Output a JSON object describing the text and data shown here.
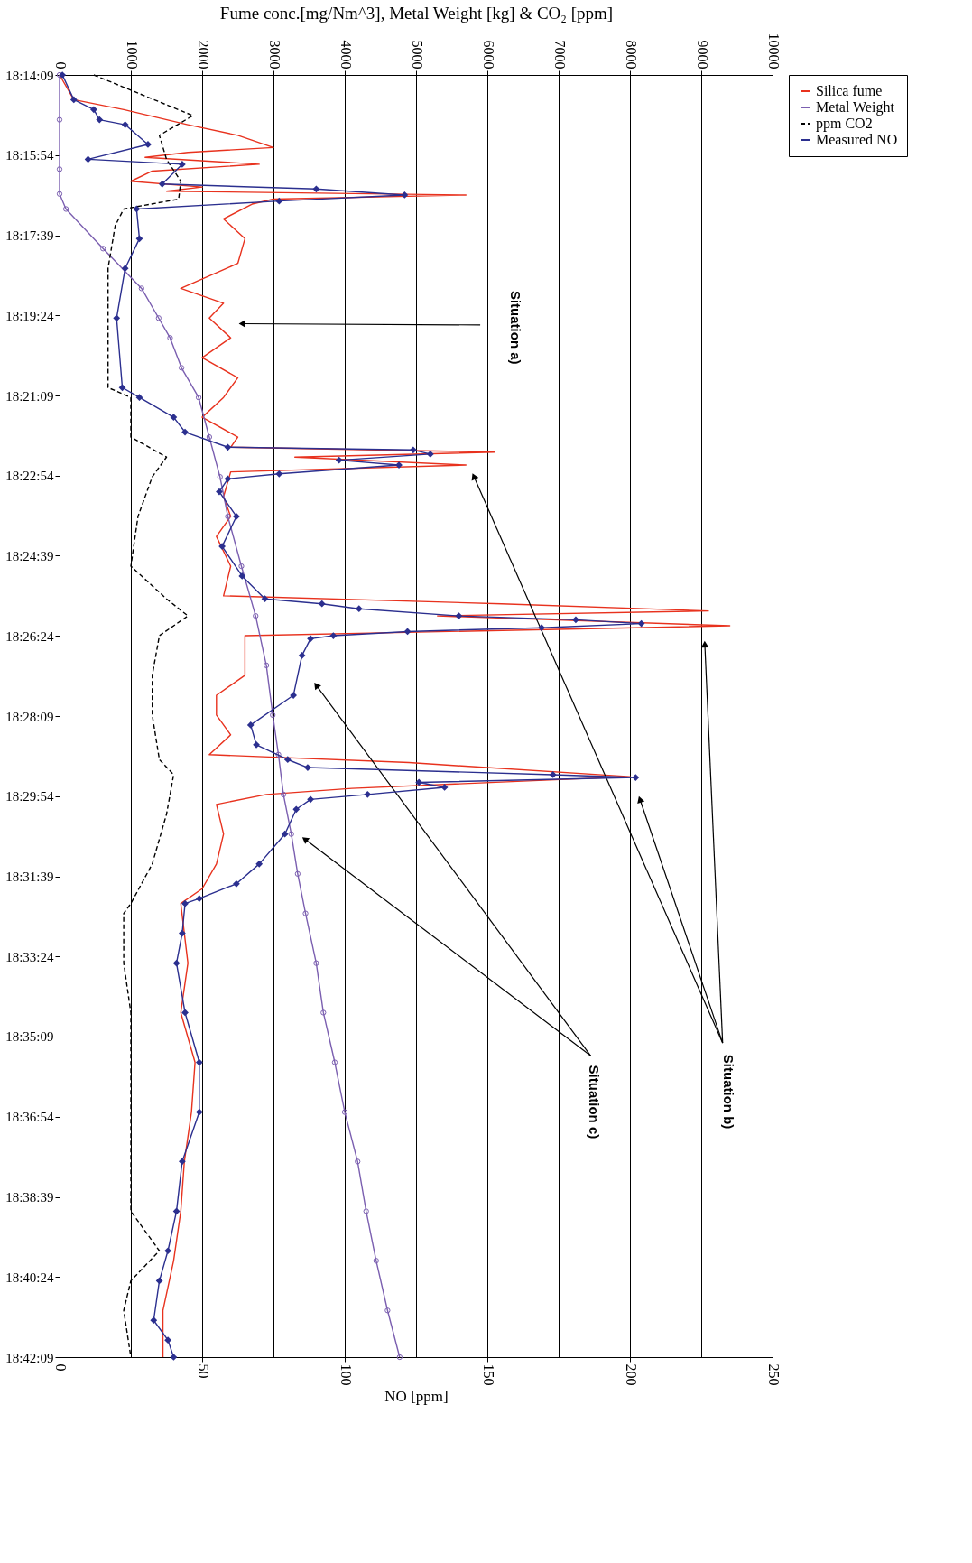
{
  "chart_data": {
    "type": "line",
    "orientation": "horizontal",
    "x2label": "Fume conc.[mg/Nm^3], Metal Weight [kg] & CO₂ [ppm]",
    "xlabel": "NO [ppm]",
    "ylim": [
      18.7025,
      18.2358
    ],
    "yticks": [
      {
        "value": 18.2358,
        "label": "18:14:09"
      },
      {
        "value": 18.265,
        "label": "18:15:54"
      },
      {
        "value": 18.2942,
        "label": "18:17:39"
      },
      {
        "value": 18.3233,
        "label": "18:19:24"
      },
      {
        "value": 18.3525,
        "label": "18:21:09"
      },
      {
        "value": 18.3817,
        "label": "18:22:54"
      },
      {
        "value": 18.4108,
        "label": "18:24:39"
      },
      {
        "value": 18.44,
        "label": "18:26:24"
      },
      {
        "value": 18.4692,
        "label": "18:28:09"
      },
      {
        "value": 18.4983,
        "label": "18:29:54"
      },
      {
        "value": 18.5275,
        "label": "18:31:39"
      },
      {
        "value": 18.5567,
        "label": "18:33:24"
      },
      {
        "value": 18.5858,
        "label": "18:35:09"
      },
      {
        "value": 18.615,
        "label": "18:36:54"
      },
      {
        "value": 18.6442,
        "label": "18:38:39"
      },
      {
        "value": 18.6733,
        "label": "18:40:24"
      },
      {
        "value": 18.7025,
        "label": "18:42:09"
      }
    ],
    "x2lim": [
      0,
      10000
    ],
    "x2ticks": [
      0,
      1000,
      2000,
      3000,
      4000,
      5000,
      6000,
      7000,
      8000,
      9000,
      10000
    ],
    "xlim": [
      0,
      250
    ],
    "xticks": [
      0,
      50,
      100,
      150,
      200,
      250
    ],
    "grid": "x2",
    "legend": "right",
    "series": [
      {
        "name": "Silica fume",
        "color": "#e8321e",
        "marker": "none",
        "line_style": "solid",
        "axis": "x2",
        "x": [
          18.2358,
          18.2448,
          18.2484,
          18.2539,
          18.2578,
          18.2622,
          18.264,
          18.2658,
          18.2683,
          18.2708,
          18.2745,
          18.2766,
          18.2781,
          18.2795,
          18.281,
          18.2828,
          18.2882,
          18.2954,
          18.3044,
          18.3135,
          18.3189,
          18.3243,
          18.3315,
          18.3387,
          18.346,
          18.3532,
          18.3604,
          18.3676,
          18.3713,
          18.3731,
          18.3749,
          18.3778,
          18.3803,
          18.3893,
          18.3965,
          18.4038,
          18.4146,
          18.4254,
          18.4283,
          18.4309,
          18.4327,
          18.4363,
          18.4399,
          18.4543,
          18.4616,
          18.4688,
          18.476,
          18.4832,
          18.4861,
          18.4912,
          18.4955,
          18.4977,
          18.5013,
          18.5121,
          18.523,
          18.532,
          18.5374,
          18.5591,
          18.5771,
          18.5952,
          18.6133,
          18.6313,
          18.6494,
          18.6674,
          18.6855,
          18.7025
        ],
        "values": [
          0,
          200,
          900,
          1800,
          2500,
          3000,
          1800,
          1200,
          2800,
          1300,
          1000,
          2000,
          1500,
          5700,
          3000,
          2700,
          2300,
          2600,
          2500,
          1700,
          2300,
          2100,
          2400,
          2000,
          2500,
          2300,
          2000,
          2500,
          2400,
          6100,
          3300,
          5700,
          2400,
          2300,
          2400,
          2200,
          2400,
          2300,
          6200,
          9100,
          5300,
          9400,
          2600,
          2600,
          2200,
          2200,
          2400,
          2100,
          4900,
          8000,
          4100,
          2900,
          2200,
          2300,
          2200,
          2000,
          1700,
          1800,
          1700,
          1900,
          1850,
          1750,
          1700,
          1600,
          1450,
          1450
        ]
      },
      {
        "name": "Metal Weight",
        "color": "#7b5fb0",
        "marker": "circle",
        "line_style": "solid",
        "axis": "x2",
        "x": [
          18.2358,
          18.2521,
          18.2701,
          18.2791,
          18.2846,
          18.299,
          18.3135,
          18.3243,
          18.3315,
          18.3424,
          18.3532,
          18.3676,
          18.3821,
          18.3965,
          18.4146,
          18.4327,
          18.4507,
          18.4688,
          18.4832,
          18.4977,
          18.5121,
          18.5266,
          18.541,
          18.5591,
          18.5771,
          18.5952,
          18.6133,
          18.6313,
          18.6494,
          18.6674,
          18.6855,
          18.7025
        ],
        "values": [
          0,
          0,
          0,
          0,
          90,
          610,
          1150,
          1390,
          1550,
          1710,
          1950,
          2100,
          2250,
          2360,
          2550,
          2750,
          2900,
          2990,
          3070,
          3140,
          3250,
          3340,
          3450,
          3600,
          3700,
          3860,
          4000,
          4180,
          4300,
          4440,
          4600,
          4770
        ]
      },
      {
        "name": "ppm CO2",
        "color": "#000000",
        "marker": "none",
        "line_style": "dashed",
        "axis": "x2",
        "x": [
          18.2358,
          18.2506,
          18.2578,
          18.2665,
          18.2745,
          18.281,
          18.2846,
          18.2907,
          18.3062,
          18.3243,
          18.3496,
          18.3532,
          18.3676,
          18.3749,
          18.3821,
          18.3965,
          18.4146,
          18.4265,
          18.4327,
          18.4399,
          18.4543,
          18.4688,
          18.485,
          18.4905,
          18.5049,
          18.523,
          18.5374,
          18.541,
          18.5591,
          18.5771,
          18.5952,
          18.6133,
          18.6313,
          18.6494,
          18.6638,
          18.6747,
          18.6855,
          18.7025
        ],
        "values": [
          480,
          1870,
          1400,
          1500,
          1700,
          1670,
          900,
          780,
          680,
          680,
          680,
          1000,
          1000,
          1500,
          1300,
          1100,
          1000,
          1500,
          1800,
          1400,
          1300,
          1300,
          1400,
          1600,
          1500,
          1300,
          1000,
          900,
          900,
          1000,
          1000,
          1000,
          1000,
          1000,
          1400,
          1000,
          900,
          1000
        ]
      },
      {
        "name": "Measured NO",
        "color": "#2b2f8f",
        "marker": "diamond",
        "line_style": "solid",
        "x": [
          18.2358,
          18.2448,
          18.2484,
          18.2521,
          18.2539,
          18.2611,
          18.2665,
          18.2683,
          18.2755,
          18.2773,
          18.2795,
          18.2817,
          18.2846,
          18.2954,
          18.3062,
          18.3243,
          18.3496,
          18.3532,
          18.3604,
          18.3658,
          18.3713,
          18.3723,
          18.3738,
          18.376,
          18.3778,
          18.381,
          18.3828,
          18.3875,
          18.3965,
          18.4074,
          18.4182,
          18.4265,
          18.4283,
          18.4301,
          18.4327,
          18.4341,
          18.4355,
          18.437,
          18.4384,
          18.4399,
          18.441,
          18.4471,
          18.4616,
          18.4724,
          18.4796,
          18.485,
          18.4879,
          18.4905,
          18.4915,
          18.4933,
          18.4951,
          18.4977,
          18.4995,
          18.5031,
          18.5121,
          18.523,
          18.5302,
          18.5356,
          18.5374,
          18.5482,
          18.5591,
          18.5771,
          18.5952,
          18.6133,
          18.6313,
          18.6494,
          18.6638,
          18.6747,
          18.6891,
          18.6963,
          18.7025
        ],
        "values": [
          1,
          5,
          12,
          14,
          23,
          31,
          10,
          43,
          36,
          90,
          121,
          77,
          27,
          28,
          23,
          20,
          22,
          28,
          40,
          44,
          59,
          124,
          130,
          98,
          119,
          77,
          59,
          56,
          62,
          57,
          64,
          72,
          92,
          105,
          140,
          181,
          204,
          169,
          122,
          96,
          88,
          85,
          82,
          67,
          69,
          80,
          87,
          173,
          202,
          126,
          135,
          108,
          88,
          83,
          79,
          70,
          62,
          49,
          44,
          43,
          41,
          44,
          49,
          49,
          43,
          41,
          38,
          35,
          33,
          38,
          40
        ]
      }
    ],
    "annotations": [
      "Situation a)",
      "Situation b)",
      "Situation c)"
    ]
  }
}
